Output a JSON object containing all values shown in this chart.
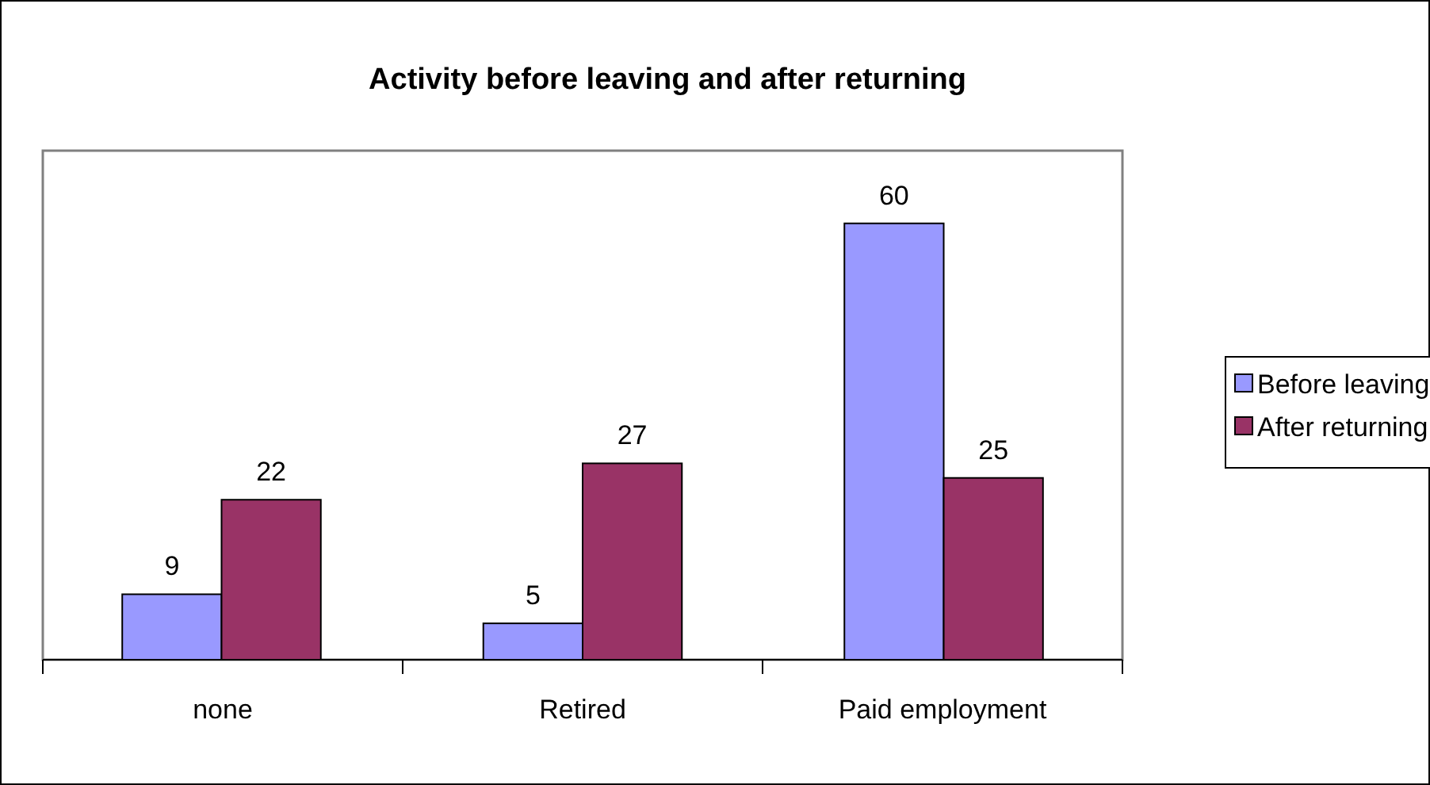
{
  "chart_data": {
    "type": "bar",
    "title": "Activity before leaving and after returning",
    "categories": [
      "none",
      "Retired",
      "Paid employment"
    ],
    "series": [
      {
        "name": "Before leaving",
        "color": "#9999ff",
        "values": [
          9,
          5,
          60
        ]
      },
      {
        "name": "After returning",
        "color": "#993366",
        "values": [
          22,
          27,
          25
        ]
      }
    ],
    "data_labels": true,
    "legend": "right",
    "grid": false
  }
}
